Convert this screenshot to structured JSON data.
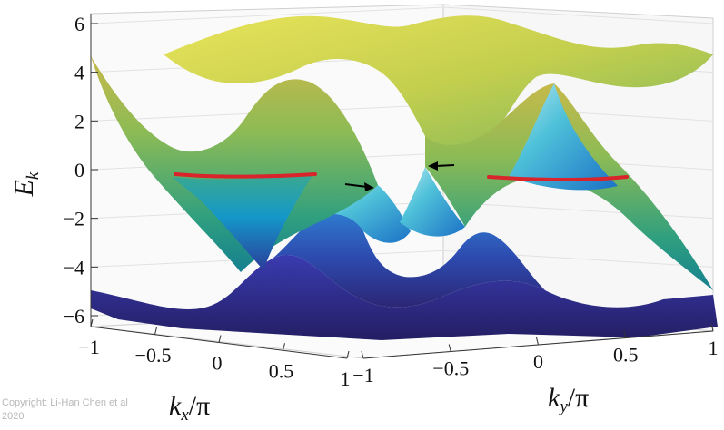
{
  "chart_data": {
    "type": "surface3d",
    "title": "",
    "zlabel": {
      "main": "E",
      "sub": "k"
    },
    "xlabel": {
      "main": "k",
      "sub": "x",
      "rest": "/π"
    },
    "ylabel": {
      "main": "k",
      "sub": "y",
      "rest": "/π"
    },
    "z_ticks": [
      {
        "value": 6,
        "label": "6"
      },
      {
        "value": 4,
        "label": "4"
      },
      {
        "value": 2,
        "label": "2"
      },
      {
        "value": 0,
        "label": "0"
      },
      {
        "value": -2,
        "label": "−2"
      },
      {
        "value": -4,
        "label": "−4"
      },
      {
        "value": -6,
        "label": "−6"
      }
    ],
    "x_ticks": [
      {
        "value": -1,
        "label": "−1"
      },
      {
        "value": -0.5,
        "label": "−0.5"
      },
      {
        "value": 0,
        "label": "0"
      },
      {
        "value": 0.5,
        "label": "0.5"
      },
      {
        "value": 1,
        "label": "1"
      }
    ],
    "y_ticks": [
      {
        "value": -1,
        "label": "−1"
      },
      {
        "value": -0.5,
        "label": "−0.5"
      },
      {
        "value": 0,
        "label": "0"
      },
      {
        "value": 0.5,
        "label": "0.5"
      },
      {
        "value": 1,
        "label": "1"
      }
    ],
    "xlim": [
      -1,
      1
    ],
    "ylim": [
      -1,
      1
    ],
    "zlim": [
      -6.5,
      6.3
    ],
    "grid": true,
    "colormap": "parula",
    "colormap_stops": [
      "#352a87",
      "#0f5cdd",
      "#1481d6",
      "#06a4ca",
      "#2eb7a4",
      "#87bf77",
      "#d1bb59",
      "#fec832",
      "#f9fb0e"
    ],
    "highlight_color": "#d8242a",
    "fermi_level": 0,
    "annotations": [
      {
        "type": "arrow",
        "points_to": "band touching point (lower-left cone)"
      },
      {
        "type": "arrow",
        "points_to": "band touching point (upper-right cone)"
      }
    ]
  },
  "copyright": "Copyright: Li-Han Chen et al 2020"
}
